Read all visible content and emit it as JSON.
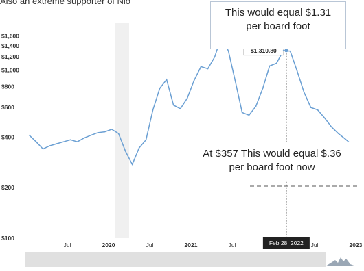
{
  "header": {
    "partial_text": "Also an extreme supporter of Nio"
  },
  "annotations": {
    "top_line1": "This would equal $1.31",
    "top_line2": "per board foot",
    "bottom_line1": "At $357 This would equal $.36",
    "bottom_line2": "per board foot now",
    "tooltip_date": "Feb 28, 2022"
  },
  "colors": {
    "line": "#6a9fd3",
    "recession_band": "#e6e6e6",
    "tooltip_bg": "#222222",
    "navigator": "#e0e0e0"
  },
  "chart_data": {
    "type": "line",
    "title": "",
    "xlabel": "",
    "ylabel": "",
    "y_scale": "log",
    "ylim": [
      100,
      1800
    ],
    "grid": false,
    "yticks": [
      {
        "value": 1600,
        "label": "$1,600"
      },
      {
        "value": 1400,
        "label": "$1,400"
      },
      {
        "value": 1200,
        "label": "$1,200"
      },
      {
        "value": 1000,
        "label": "$1,000"
      },
      {
        "value": 800,
        "label": "$800"
      },
      {
        "value": 600,
        "label": "$600"
      },
      {
        "value": 400,
        "label": "$400"
      },
      {
        "value": 200,
        "label": "$200"
      },
      {
        "value": 100,
        "label": "$100"
      }
    ],
    "xticks": [
      {
        "x": "2019-07",
        "label": "Jul",
        "bold": false
      },
      {
        "x": "2020-01",
        "label": "2020",
        "bold": true
      },
      {
        "x": "2020-07",
        "label": "Jul",
        "bold": false
      },
      {
        "x": "2021-01",
        "label": "2021",
        "bold": true
      },
      {
        "x": "2021-07",
        "label": "Jul",
        "bold": false
      },
      {
        "x": "2022-07",
        "label": "Jul",
        "bold": false
      },
      {
        "x": "2023-01",
        "label": "2023",
        "bold": true
      }
    ],
    "xlim": [
      "2019-01",
      "2023-01"
    ],
    "recession_band": {
      "start": "2020-02",
      "end": "2020-04"
    },
    "highlight": {
      "x": "2022-02-28",
      "value": 1310.8,
      "label": "$1,310.80"
    },
    "series": [
      {
        "x": [
          "2019-01",
          "2019-02",
          "2019-03",
          "2019-04",
          "2019-05",
          "2019-06",
          "2019-07",
          "2019-08",
          "2019-09",
          "2019-10",
          "2019-11",
          "2019-12",
          "2020-01",
          "2020-02",
          "2020-03",
          "2020-04",
          "2020-05",
          "2020-06",
          "2020-07",
          "2020-08",
          "2020-09",
          "2020-10",
          "2020-11",
          "2020-12",
          "2021-01",
          "2021-02",
          "2021-03",
          "2021-04",
          "2021-05",
          "2021-06",
          "2021-07",
          "2021-08",
          "2021-09",
          "2021-10",
          "2021-11",
          "2021-12",
          "2022-01",
          "2022-02",
          "2022-03",
          "2022-04",
          "2022-05",
          "2022-06",
          "2022-07",
          "2022-08",
          "2022-09",
          "2022-10",
          "2022-11",
          "2022-12"
        ],
        "values": [
          410,
          375,
          340,
          355,
          365,
          375,
          385,
          375,
          395,
          410,
          425,
          430,
          445,
          420,
          330,
          275,
          345,
          385,
          580,
          780,
          880,
          620,
          590,
          680,
          870,
          1050,
          1020,
          1200,
          1600,
          1300,
          860,
          560,
          540,
          610,
          780,
          1060,
          1100,
          1310,
          1300,
          990,
          740,
          600,
          580,
          520,
          460,
          420,
          390,
          360
        ]
      }
    ]
  }
}
